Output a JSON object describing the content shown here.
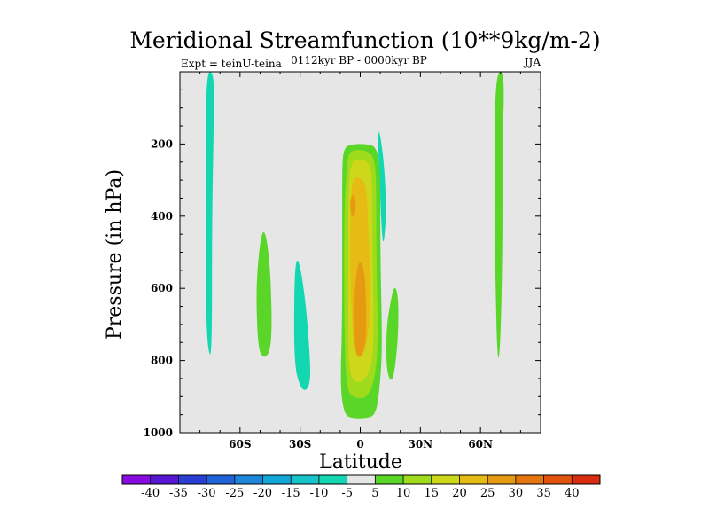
{
  "chart_data": {
    "type": "contour",
    "title": "Meridional Streamfunction (10**9kg/m-2)",
    "subtitle": "0112kyr BP - 0000kyr BP",
    "left_label": "Expt = teinU-teina",
    "right_label": "JJA",
    "xlabel": "Latitude",
    "ylabel": "Pressure (in hPa)",
    "xlim": [
      -90,
      90
    ],
    "ylim": [
      1000,
      0
    ],
    "x_ticks": [
      {
        "value": -60,
        "label": "60S"
      },
      {
        "value": -30,
        "label": "30S"
      },
      {
        "value": 0,
        "label": "0"
      },
      {
        "value": 30,
        "label": "30N"
      },
      {
        "value": 60,
        "label": "60N"
      }
    ],
    "y_ticks": [
      {
        "value": 200,
        "label": "200"
      },
      {
        "value": 400,
        "label": "400"
      },
      {
        "value": 600,
        "label": "600"
      },
      {
        "value": 800,
        "label": "800"
      },
      {
        "value": 1000,
        "label": "1000"
      }
    ],
    "background_color": "#e6e6e6",
    "colorbar": {
      "labels": [
        "-40",
        "-35",
        "-30",
        "-25",
        "-20",
        "-15",
        "-10",
        "-5",
        "5",
        "10",
        "15",
        "20",
        "25",
        "30",
        "35",
        "40"
      ],
      "colors": [
        "#8a0be0",
        "#5616d3",
        "#2b3ed4",
        "#1f63d6",
        "#1b86da",
        "#10a8d8",
        "#16c3c8",
        "#12d7b0",
        "#e6e6e6",
        "#5ad629",
        "#9ddb1b",
        "#cfd71a",
        "#e6bb14",
        "#e69a12",
        "#e5760f",
        "#e1530e",
        "#d82d10"
      ]
    },
    "regions": [
      {
        "name": "teal-column-60s",
        "level": "-5",
        "points": [
          [
            -77,
            0
          ],
          [
            -73,
            0
          ],
          [
            -73,
            120
          ],
          [
            -74,
            400
          ],
          [
            -74,
            790
          ],
          [
            -76,
            775
          ],
          [
            -77,
            660
          ],
          [
            -77,
            300
          ]
        ]
      },
      {
        "name": "teal-ellipse-30s",
        "level": "-5",
        "points": [
          [
            -32,
            515
          ],
          [
            -30,
            535
          ],
          [
            -27,
            650
          ],
          [
            -25,
            800
          ],
          [
            -25,
            860
          ],
          [
            -27,
            885
          ],
          [
            -30,
            875
          ],
          [
            -33,
            810
          ],
          [
            -33,
            600
          ]
        ]
      },
      {
        "name": "teal-streak-5n",
        "level": "-5",
        "points": [
          [
            9,
            160
          ],
          [
            10,
            175
          ],
          [
            12,
            260
          ],
          [
            13,
            380
          ],
          [
            12,
            470
          ],
          [
            11,
            470
          ],
          [
            10,
            350
          ],
          [
            9,
            230
          ]
        ]
      },
      {
        "name": "green-ellipse-45s",
        "level": "5",
        "points": [
          [
            -49,
            440
          ],
          [
            -47,
            450
          ],
          [
            -45,
            540
          ],
          [
            -44,
            700
          ],
          [
            -45,
            775
          ],
          [
            -48,
            795
          ],
          [
            -51,
            770
          ],
          [
            -52,
            620
          ],
          [
            -51,
            520
          ]
        ]
      },
      {
        "name": "green-column-70n",
        "level": "5",
        "points": [
          [
            68,
            0
          ],
          [
            72,
            0
          ],
          [
            71,
            200
          ],
          [
            71,
            500
          ],
          [
            70,
            740
          ],
          [
            69,
            810
          ],
          [
            68,
            740
          ],
          [
            67,
            400
          ],
          [
            67,
            150
          ]
        ]
      },
      {
        "name": "green-ellipse-15n",
        "level": "5",
        "points": [
          [
            17,
            590
          ],
          [
            19,
            620
          ],
          [
            19,
            730
          ],
          [
            17,
            840
          ],
          [
            15,
            860
          ],
          [
            13,
            820
          ],
          [
            13,
            710
          ],
          [
            15,
            640
          ]
        ]
      },
      {
        "name": "equatorial-cell-5",
        "level": "5",
        "points": [
          [
            -8,
            210
          ],
          [
            -4,
            200
          ],
          [
            4,
            200
          ],
          [
            8,
            210
          ],
          [
            10,
            260
          ],
          [
            10,
            500
          ],
          [
            11,
            760
          ],
          [
            10,
            860
          ],
          [
            8,
            950
          ],
          [
            3,
            960
          ],
          [
            -4,
            960
          ],
          [
            -8,
            950
          ],
          [
            -10,
            870
          ],
          [
            -9,
            700
          ],
          [
            -9,
            400
          ],
          [
            -9,
            250
          ]
        ]
      },
      {
        "name": "equatorial-cell-10",
        "level": "10",
        "points": [
          [
            -6,
            225
          ],
          [
            -2,
            215
          ],
          [
            4,
            220
          ],
          [
            7,
            240
          ],
          [
            8,
            300
          ],
          [
            8,
            500
          ],
          [
            9,
            760
          ],
          [
            7,
            860
          ],
          [
            3,
            905
          ],
          [
            -3,
            905
          ],
          [
            -7,
            880
          ],
          [
            -8,
            700
          ],
          [
            -8,
            400
          ],
          [
            -7,
            280
          ]
        ]
      },
      {
        "name": "equatorial-cell-15",
        "level": "15",
        "points": [
          [
            -5,
            255
          ],
          [
            -1,
            240
          ],
          [
            3,
            245
          ],
          [
            6,
            270
          ],
          [
            6,
            500
          ],
          [
            7,
            750
          ],
          [
            5,
            830
          ],
          [
            1,
            860
          ],
          [
            -3,
            860
          ],
          [
            -6,
            820
          ],
          [
            -6,
            600
          ],
          [
            -6,
            350
          ]
        ]
      },
      {
        "name": "equatorial-cell-20",
        "level": "20",
        "points": [
          [
            -4,
            300
          ],
          [
            -1,
            290
          ],
          [
            3,
            310
          ],
          [
            4,
            420
          ],
          [
            5,
            620
          ],
          [
            4,
            740
          ],
          [
            1,
            790
          ],
          [
            -2,
            790
          ],
          [
            -4,
            720
          ],
          [
            -5,
            560
          ],
          [
            -5,
            380
          ]
        ]
      },
      {
        "name": "equatorial-cell-25-lower",
        "level": "25",
        "points": [
          [
            -1,
            520
          ],
          [
            2,
            540
          ],
          [
            3,
            640
          ],
          [
            3,
            740
          ],
          [
            1,
            790
          ],
          [
            -2,
            790
          ],
          [
            -3,
            730
          ],
          [
            -3,
            610
          ]
        ]
      },
      {
        "name": "equatorial-cell-25-upper",
        "level": "25",
        "points": [
          [
            -5,
            350
          ],
          [
            -3,
            335
          ],
          [
            -2,
            370
          ],
          [
            -3,
            410
          ],
          [
            -5,
            390
          ]
        ]
      }
    ]
  }
}
